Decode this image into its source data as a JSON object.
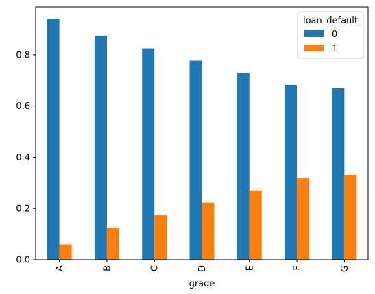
{
  "chart_data": {
    "type": "bar",
    "categories": [
      "A",
      "B",
      "C",
      "D",
      "E",
      "F",
      "G"
    ],
    "series": [
      {
        "name": "0",
        "color": "#1f77b4",
        "values": [
          0.94,
          0.875,
          0.825,
          0.777,
          0.729,
          0.682,
          0.669
        ]
      },
      {
        "name": "1",
        "color": "#ff7f0e",
        "values": [
          0.06,
          0.125,
          0.175,
          0.223,
          0.271,
          0.318,
          0.331
        ]
      }
    ],
    "title": "",
    "xlabel": "grade",
    "ylabel": "",
    "ylim": [
      0,
      0.987
    ],
    "yticks": [
      0.0,
      0.2,
      0.4,
      0.6,
      0.8
    ],
    "ytick_labels": [
      "0.0",
      "0.2",
      "0.4",
      "0.6",
      "0.8"
    ],
    "legend": {
      "title": "loan_default",
      "placement": "top-right"
    },
    "grid": false
  }
}
